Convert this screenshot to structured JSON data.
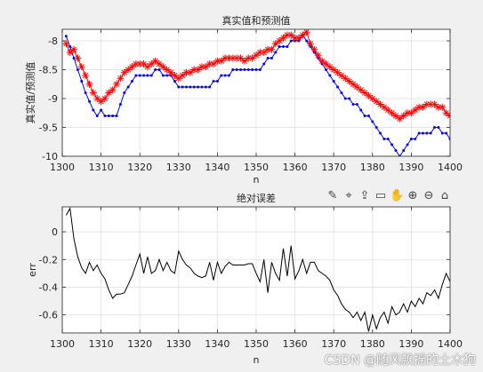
{
  "chart_data": [
    {
      "type": "line",
      "title": "真实值和预测值",
      "xlabel": "n",
      "ylabel": "真实值/预测值",
      "xlim": [
        1300,
        1400
      ],
      "ylim": [
        -10,
        -7.8
      ],
      "xticks": [
        1300,
        1310,
        1320,
        1330,
        1340,
        1350,
        1360,
        1370,
        1380,
        1390,
        1400
      ],
      "yticks": [
        -8,
        -8.5,
        -9,
        -9.5,
        -10
      ],
      "grid": true,
      "series": [
        {
          "color": "#0000ff",
          "marker": "dot",
          "x": [
            1301,
            1302,
            1303,
            1304,
            1305,
            1306,
            1307,
            1308,
            1309,
            1310,
            1311,
            1312,
            1313,
            1314,
            1315,
            1316,
            1317,
            1318,
            1319,
            1320,
            1321,
            1322,
            1323,
            1324,
            1325,
            1326,
            1327,
            1328,
            1329,
            1330,
            1331,
            1332,
            1333,
            1334,
            1335,
            1336,
            1337,
            1338,
            1339,
            1340,
            1341,
            1342,
            1343,
            1344,
            1345,
            1346,
            1347,
            1348,
            1349,
            1350,
            1351,
            1352,
            1353,
            1354,
            1355,
            1356,
            1357,
            1358,
            1359,
            1360,
            1361,
            1362,
            1363,
            1364,
            1365,
            1366,
            1367,
            1368,
            1369,
            1370,
            1371,
            1372,
            1373,
            1374,
            1375,
            1376,
            1377,
            1378,
            1379,
            1380,
            1381,
            1382,
            1383,
            1384,
            1385,
            1386,
            1387,
            1388,
            1389,
            1390,
            1391,
            1392,
            1393,
            1394,
            1395,
            1396,
            1397,
            1398,
            1399,
            1400
          ],
          "y": [
            -7.92,
            -8.1,
            -8.3,
            -8.5,
            -8.7,
            -8.9,
            -9.05,
            -9.2,
            -9.3,
            -9.2,
            -9.3,
            -9.3,
            -9.3,
            -9.3,
            -9.1,
            -8.9,
            -8.8,
            -8.7,
            -8.6,
            -8.6,
            -8.6,
            -8.6,
            -8.6,
            -8.5,
            -8.5,
            -8.6,
            -8.6,
            -8.6,
            -8.7,
            -8.8,
            -8.8,
            -8.8,
            -8.8,
            -8.8,
            -8.8,
            -8.8,
            -8.8,
            -8.8,
            -8.7,
            -8.7,
            -8.6,
            -8.6,
            -8.6,
            -8.5,
            -8.5,
            -8.5,
            -8.5,
            -8.5,
            -8.5,
            -8.5,
            -8.5,
            -8.4,
            -8.3,
            -8.3,
            -8.2,
            -8.1,
            -8.1,
            -8.1,
            -8.0,
            -8.0,
            -8.0,
            -7.9,
            -8.0,
            -8.1,
            -8.2,
            -8.3,
            -8.4,
            -8.5,
            -8.6,
            -8.7,
            -8.8,
            -8.9,
            -9.0,
            -9.0,
            -9.1,
            -9.1,
            -9.2,
            -9.3,
            -9.3,
            -9.4,
            -9.5,
            -9.6,
            -9.7,
            -9.7,
            -9.8,
            -9.9,
            -10.0,
            -9.9,
            -9.8,
            -9.7,
            -9.7,
            -9.6,
            -9.6,
            -9.6,
            -9.6,
            -9.5,
            -9.5,
            -9.6,
            -9.6,
            -9.7
          ]
        },
        {
          "color": "#ff0000",
          "marker": "asterisk",
          "x": [
            1301,
            1302,
            1303,
            1304,
            1305,
            1306,
            1307,
            1308,
            1309,
            1310,
            1311,
            1312,
            1313,
            1314,
            1315,
            1316,
            1317,
            1318,
            1319,
            1320,
            1321,
            1322,
            1323,
            1324,
            1325,
            1326,
            1327,
            1328,
            1329,
            1330,
            1331,
            1332,
            1333,
            1334,
            1335,
            1336,
            1337,
            1338,
            1339,
            1340,
            1341,
            1342,
            1343,
            1344,
            1345,
            1346,
            1347,
            1348,
            1349,
            1350,
            1351,
            1352,
            1353,
            1354,
            1355,
            1356,
            1357,
            1358,
            1359,
            1360,
            1361,
            1362,
            1363,
            1364,
            1365,
            1366,
            1367,
            1368,
            1369,
            1370,
            1371,
            1372,
            1373,
            1374,
            1375,
            1376,
            1377,
            1378,
            1379,
            1380,
            1381,
            1382,
            1383,
            1384,
            1385,
            1386,
            1387,
            1388,
            1389,
            1390,
            1391,
            1392,
            1393,
            1394,
            1395,
            1396,
            1397,
            1398,
            1399,
            1400
          ],
          "y": [
            -8.05,
            -8.2,
            -8.15,
            -8.3,
            -8.45,
            -8.6,
            -8.75,
            -8.9,
            -9.0,
            -9.05,
            -9.0,
            -8.9,
            -8.85,
            -8.75,
            -8.65,
            -8.55,
            -8.5,
            -8.45,
            -8.4,
            -8.4,
            -8.4,
            -8.45,
            -8.4,
            -8.35,
            -8.4,
            -8.45,
            -8.5,
            -8.55,
            -8.6,
            -8.65,
            -8.6,
            -8.55,
            -8.55,
            -8.5,
            -8.5,
            -8.45,
            -8.45,
            -8.4,
            -8.4,
            -8.35,
            -8.35,
            -8.3,
            -8.3,
            -8.3,
            -8.3,
            -8.3,
            -8.35,
            -8.3,
            -8.3,
            -8.25,
            -8.2,
            -8.2,
            -8.15,
            -8.15,
            -8.05,
            -8.0,
            -7.95,
            -7.9,
            -7.9,
            -7.95,
            -7.95,
            -7.9,
            -7.85,
            -8.05,
            -8.15,
            -8.25,
            -8.35,
            -8.4,
            -8.45,
            -8.5,
            -8.55,
            -8.6,
            -8.65,
            -8.7,
            -8.75,
            -8.8,
            -8.85,
            -8.9,
            -8.95,
            -9.0,
            -9.05,
            -9.1,
            -9.15,
            -9.2,
            -9.25,
            -9.3,
            -9.35,
            -9.3,
            -9.25,
            -9.25,
            -9.2,
            -9.15,
            -9.15,
            -9.1,
            -9.1,
            -9.1,
            -9.15,
            -9.15,
            -9.25,
            -9.3
          ]
        }
      ]
    },
    {
      "type": "line",
      "title": "绝对误差",
      "xlabel": "n",
      "ylabel": "err",
      "xlim": [
        1300,
        1400
      ],
      "ylim": [
        -0.73,
        0.18
      ],
      "xticks": [
        1300,
        1310,
        1320,
        1330,
        1340,
        1350,
        1360,
        1370,
        1380,
        1390,
        1400
      ],
      "yticks": [
        0,
        -0.2,
        -0.4,
        -0.6
      ],
      "grid": true,
      "series": [
        {
          "color": "#000000",
          "marker": "none",
          "x": [
            1301,
            1302,
            1303,
            1304,
            1305,
            1306,
            1307,
            1308,
            1309,
            1310,
            1311,
            1312,
            1313,
            1314,
            1315,
            1316,
            1317,
            1318,
            1319,
            1320,
            1321,
            1322,
            1323,
            1324,
            1325,
            1326,
            1327,
            1328,
            1329,
            1330,
            1331,
            1332,
            1333,
            1334,
            1335,
            1336,
            1337,
            1338,
            1339,
            1340,
            1341,
            1342,
            1343,
            1344,
            1345,
            1346,
            1347,
            1348,
            1349,
            1350,
            1351,
            1352,
            1353,
            1354,
            1355,
            1356,
            1357,
            1358,
            1359,
            1360,
            1361,
            1362,
            1363,
            1364,
            1365,
            1366,
            1367,
            1368,
            1369,
            1370,
            1371,
            1372,
            1373,
            1374,
            1375,
            1376,
            1377,
            1378,
            1379,
            1380,
            1381,
            1382,
            1383,
            1384,
            1385,
            1386,
            1387,
            1388,
            1389,
            1390,
            1391,
            1392,
            1393,
            1394,
            1395,
            1396,
            1397,
            1398,
            1399,
            1400
          ],
          "y": [
            0.12,
            0.17,
            -0.05,
            -0.18,
            -0.26,
            -0.3,
            -0.22,
            -0.28,
            -0.24,
            -0.3,
            -0.34,
            -0.42,
            -0.48,
            -0.45,
            -0.45,
            -0.44,
            -0.38,
            -0.32,
            -0.24,
            -0.16,
            -0.3,
            -0.18,
            -0.3,
            -0.28,
            -0.2,
            -0.28,
            -0.22,
            -0.28,
            -0.3,
            -0.14,
            -0.2,
            -0.24,
            -0.26,
            -0.3,
            -0.32,
            -0.33,
            -0.32,
            -0.22,
            -0.35,
            -0.22,
            -0.3,
            -0.25,
            -0.22,
            -0.24,
            -0.24,
            -0.24,
            -0.24,
            -0.23,
            -0.23,
            -0.3,
            -0.36,
            -0.2,
            -0.44,
            -0.22,
            -0.3,
            -0.35,
            -0.12,
            -0.32,
            -0.1,
            -0.34,
            -0.28,
            -0.2,
            -0.3,
            -0.22,
            -0.22,
            -0.28,
            -0.3,
            -0.32,
            -0.35,
            -0.42,
            -0.46,
            -0.52,
            -0.56,
            -0.58,
            -0.62,
            -0.58,
            -0.64,
            -0.58,
            -0.72,
            -0.6,
            -0.7,
            -0.62,
            -0.58,
            -0.66,
            -0.54,
            -0.6,
            -0.58,
            -0.52,
            -0.58,
            -0.5,
            -0.54,
            -0.48,
            -0.52,
            -0.44,
            -0.46,
            -0.42,
            -0.48,
            -0.38,
            -0.3,
            -0.36
          ]
        }
      ]
    }
  ],
  "toolbar": {
    "icons": [
      "brush-icon",
      "data-tip-icon",
      "export-icon",
      "restore-view-icon",
      "pan-icon",
      "zoom-in-icon",
      "zoom-out-icon",
      "home-icon"
    ]
  },
  "watermark": "CSDN @随风飘摇的土木狗"
}
